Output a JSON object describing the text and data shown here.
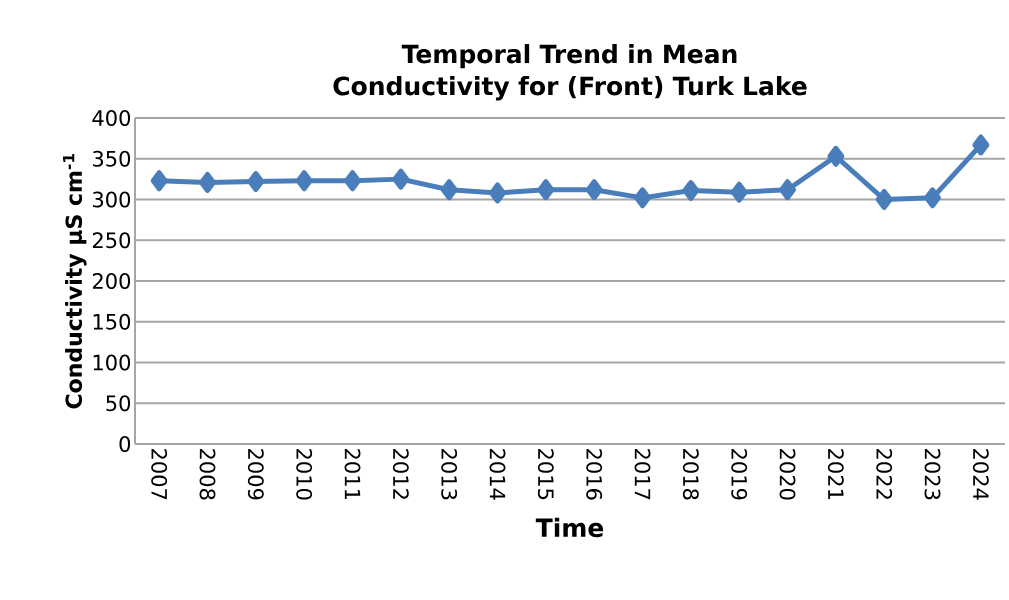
{
  "chart_data": {
    "type": "line",
    "title": "Temporal Trend in Mean Conductivity for (Front) Turk Lake",
    "xlabel": "Time",
    "ylabel": "Conductivity µS cm$^{-1}$",
    "categories": [
      "2007",
      "2008",
      "2009",
      "2010",
      "2011",
      "2012",
      "2013",
      "2014",
      "2015",
      "2016",
      "2017",
      "2018",
      "2019",
      "2020",
      "2021",
      "2022",
      "2023",
      "2024"
    ],
    "values": [
      323,
      321,
      322,
      323,
      323,
      325,
      312,
      308,
      312,
      312,
      302,
      311,
      309,
      312,
      353,
      300,
      302,
      367
    ],
    "color": "#4a7ebb",
    "marker": "diamond",
    "ylim": [
      0,
      400
    ],
    "yticks": [
      0,
      50,
      100,
      150,
      200,
      250,
      300,
      350,
      400
    ],
    "grid": "y"
  }
}
